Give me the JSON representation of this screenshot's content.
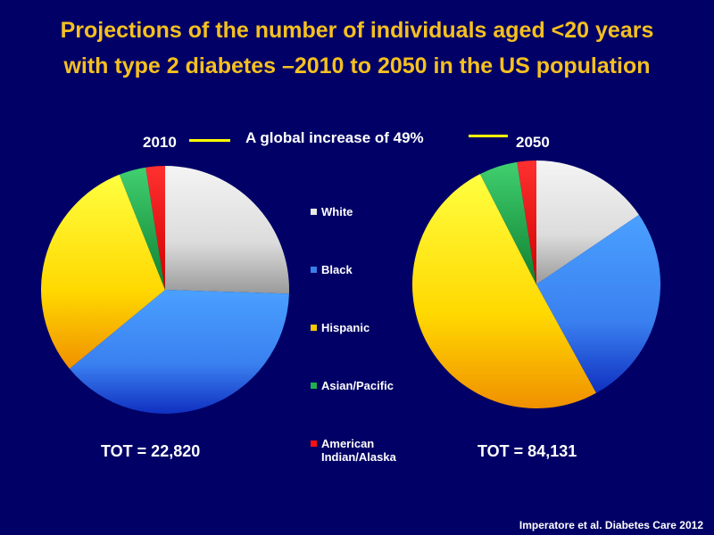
{
  "title_lines": [
    "Projections of the number of individuals aged <20 years",
    "with type 2 diabetes –2010 to 2050 in the US population"
  ],
  "annotation": "A global increase of  49%",
  "source": "Imperatore et al. Diabetes Care 2012",
  "chart_data": [
    {
      "type": "pie",
      "title": "2010",
      "total_label": "TOT = 22,820",
      "categories": [
        "White",
        "Black",
        "Hispanic",
        "Asian/Pacific",
        "American Indian/Alaska"
      ],
      "values": [
        25.5,
        38.5,
        30.0,
        3.5,
        2.5
      ],
      "colors": [
        "#e8e8e8",
        "#3a7ee8",
        "#f5c800",
        "#20b050",
        "#ff1010"
      ]
    },
    {
      "type": "pie",
      "title": "2050",
      "total_label": "TOT = 84,131",
      "categories": [
        "White",
        "Black",
        "Hispanic",
        "Asian/Pacific",
        "American Indian/Alaska"
      ],
      "values": [
        15.5,
        26.5,
        50.5,
        5.0,
        2.5
      ],
      "colors": [
        "#e8e8e8",
        "#3a7ee8",
        "#f5c800",
        "#20b050",
        "#ff1010"
      ]
    }
  ],
  "legend": {
    "items": [
      {
        "label": "White",
        "color": "#e8e8e8"
      },
      {
        "label": "Black",
        "color": "#3a7ee8"
      },
      {
        "label": "Hispanic",
        "color": "#f5c800"
      },
      {
        "label": "Asian/Pacific",
        "color": "#20b050"
      },
      {
        "label": "American Indian/Alaska",
        "color": "#ff1010"
      }
    ]
  }
}
